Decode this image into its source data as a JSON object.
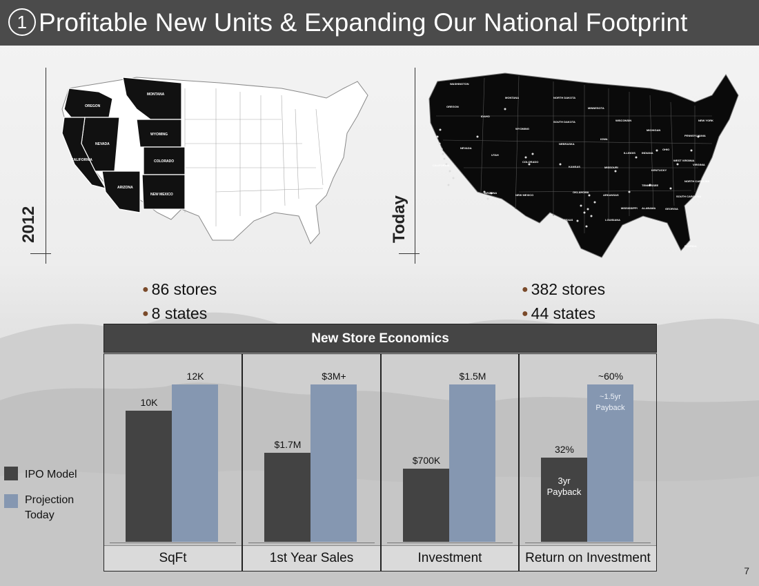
{
  "header": {
    "number": "1",
    "title": "Profitable New Units & Expanding Our National Footprint"
  },
  "left_map": {
    "period": "2012",
    "bullets": [
      "86 stores",
      "8 states"
    ],
    "state_labels": [
      "OREGON",
      "MONTANA",
      "NEVADA",
      "WYOMING",
      "CALIFORNIA",
      "COLORADO",
      "ARIZONA",
      "NEW MEXICO"
    ]
  },
  "right_map": {
    "period": "Today",
    "bullets": [
      "382 stores",
      "44 states"
    ],
    "state_labels": [
      "WASHINGTON",
      "MONTANA",
      "NORTH DAKOTA",
      "MINNESOTA",
      "OREGON",
      "IDAHO",
      "SOUTH DAKOTA",
      "WISCONSIN",
      "WYOMING",
      "NEW YORK",
      "MICHIGAN",
      "NEBRASKA",
      "IOWA",
      "PENNSYLVANIA",
      "NEVADA",
      "UTAH",
      "OHIO",
      "ILLINOIS",
      "INDIANA",
      "COLORADO",
      "WEST VIRGINIA",
      "VIRGINIA",
      "CALIFORNIA",
      "KANSAS",
      "MISSOURI",
      "KENTUCKY",
      "NORTH CAROLINA",
      "TENNESSEE",
      "ARIZONA",
      "NEW MEXICO",
      "OKLAHOMA",
      "ARKANSAS",
      "SOUTH CAROLINA",
      "MISSISSIPPI",
      "ALABAMA",
      "GEORGIA",
      "TEXAS",
      "LOUISIANA",
      "FLORIDA"
    ]
  },
  "economics": {
    "title": "New Store Economics",
    "colors": {
      "ipo": "#434343",
      "projection": "#8597b1"
    }
  },
  "chart_data": {
    "type": "bar",
    "title": "New Store Economics",
    "legend": [
      "IPO Model",
      "Projection Today"
    ],
    "legend_position": "left",
    "panels": [
      {
        "category": "SqFt",
        "series": [
          {
            "name": "IPO Model",
            "value": 10,
            "label": "10K"
          },
          {
            "name": "Projection Today",
            "value": 12,
            "label": "12K"
          }
        ]
      },
      {
        "category": "1st Year Sales",
        "series": [
          {
            "name": "IPO Model",
            "value": 1.7,
            "label": "$1.7M"
          },
          {
            "name": "Projection Today",
            "value": 3.0,
            "label": "$3M+"
          }
        ]
      },
      {
        "category": "Investment",
        "series": [
          {
            "name": "IPO Model",
            "value": 0.7,
            "label": "$700K"
          },
          {
            "name": "Projection Today",
            "value": 1.5,
            "label": "$1.5M"
          }
        ]
      },
      {
        "category": "Return on Investment",
        "series": [
          {
            "name": "IPO Model",
            "value": 32,
            "label": "32%",
            "note": "3yr Payback"
          },
          {
            "name": "Projection Today",
            "value": 60,
            "label": "~60%",
            "note": "~1.5yr Payback"
          }
        ]
      }
    ]
  },
  "page_number": "7"
}
